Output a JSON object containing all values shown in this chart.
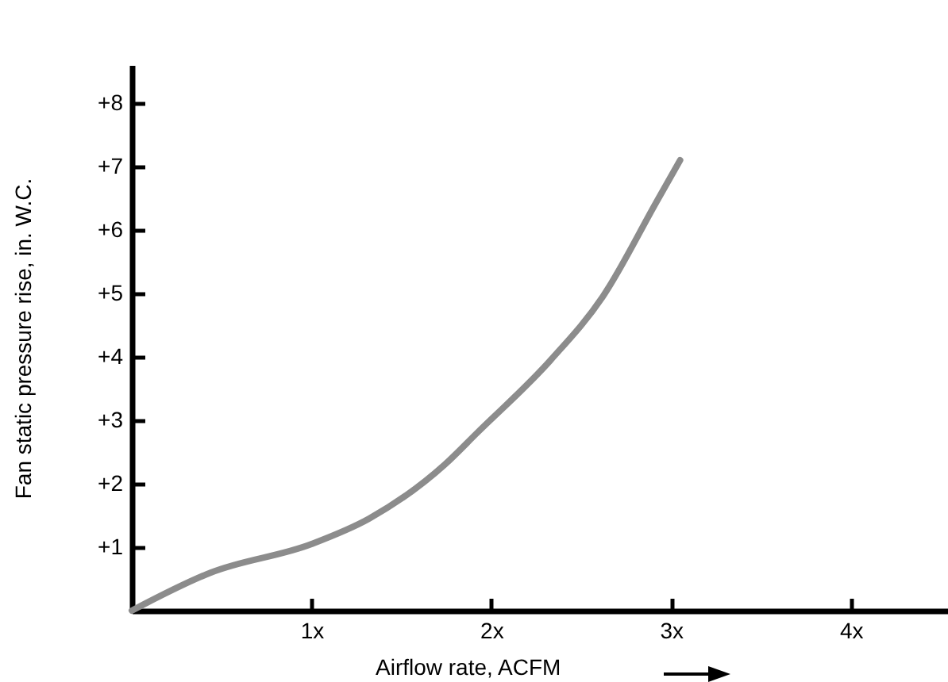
{
  "chart_data": {
    "type": "line",
    "xlabel": "Airflow rate, ACFM",
    "ylabel": "Fan static pressure rise, in. W.C.",
    "x": [
      0,
      0.44,
      1,
      1.32,
      1.74,
      1.92,
      2.33,
      2.62,
      2.92,
      3.05
    ],
    "series": [
      {
        "color": "#8c8c8c",
        "values": [
          0,
          0.6,
          1.05,
          1.45,
          2.3,
          2.8,
          3.95,
          4.95,
          6.45,
          7.1
        ]
      }
    ],
    "xlim": [
      0,
      4.54
    ],
    "ylim": [
      0,
      8.6
    ],
    "xticks": [
      {
        "value": 1,
        "label": "1x"
      },
      {
        "value": 2,
        "label": "2x"
      },
      {
        "value": 3,
        "label": "3x"
      },
      {
        "value": 4,
        "label": "4x"
      }
    ],
    "yticks": [
      {
        "value": 1,
        "label": "+1"
      },
      {
        "value": 2,
        "label": "+2"
      },
      {
        "value": 3,
        "label": "+3"
      },
      {
        "value": 4,
        "label": "+4"
      },
      {
        "value": 5,
        "label": "+5"
      },
      {
        "value": 6,
        "label": "+6"
      },
      {
        "value": 7,
        "label": "+7"
      },
      {
        "value": 8,
        "label": "+8"
      }
    ],
    "grid": false,
    "marker": "none",
    "line_style": "solid"
  }
}
